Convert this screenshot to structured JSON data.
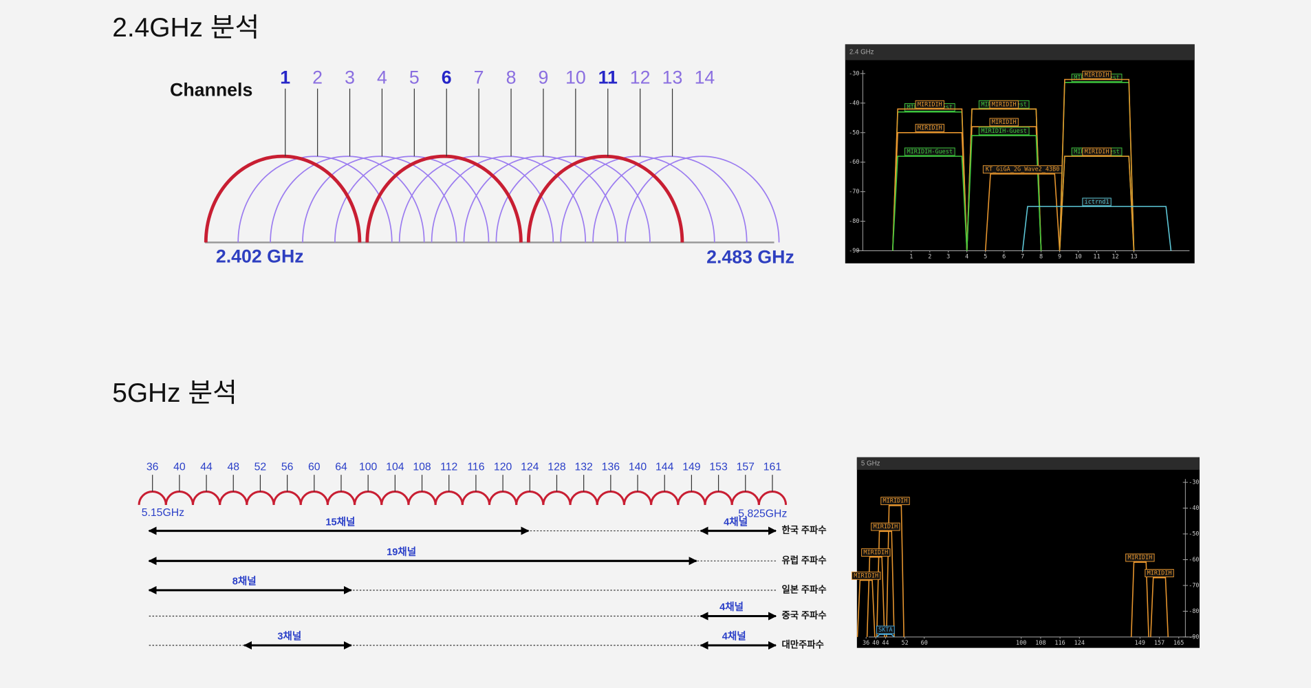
{
  "sections": [
    {
      "title": "2.4GHz 분석",
      "diagram": {
        "axis_label": "Channels",
        "channels": [
          "1",
          "2",
          "3",
          "4",
          "5",
          "6",
          "7",
          "8",
          "9",
          "10",
          "11",
          "12",
          "13",
          "14"
        ],
        "freq_start": "2.402 GHz",
        "freq_end": "2.483 GHz"
      },
      "analyzer": {
        "header": "2.4 GHz",
        "yticks": [
          -30,
          -40,
          -50,
          -60,
          -70,
          -80,
          -90
        ],
        "xticks": [
          1,
          2,
          3,
          4,
          5,
          6,
          7,
          8,
          9,
          10,
          11,
          12,
          13
        ],
        "networks": [
          {
            "ssid": "MIRIDIH-Guest",
            "channel": 2,
            "width": 20,
            "level": -43,
            "color": "#3ec83e"
          },
          {
            "ssid": "MIRIDIH",
            "channel": 2,
            "width": 20,
            "level": -42,
            "color": "#e8962e"
          },
          {
            "ssid": "MIRIDIH",
            "channel": 2,
            "width": 20,
            "level": -50,
            "color": "#e8962e"
          },
          {
            "ssid": "MIRIDIH-Guest",
            "channel": 2,
            "width": 20,
            "level": -58,
            "color": "#3ec83e"
          },
          {
            "ssid": "MIRIDIH-Guest",
            "channel": 6,
            "width": 20,
            "level": -42,
            "color": "#3ec83e"
          },
          {
            "ssid": "MIRIDIH",
            "channel": 6,
            "width": 20,
            "level": -42,
            "color": "#e8962e"
          },
          {
            "ssid": "MIRIDIH",
            "channel": 6,
            "width": 20,
            "level": -48,
            "color": "#e8962e"
          },
          {
            "ssid": "MIRIDIH-Guest",
            "channel": 6,
            "width": 20,
            "level": -51,
            "color": "#3ec83e"
          },
          {
            "ssid": "KT_GiGA_2G_Wave2_43B0",
            "channel": 7,
            "width": 20,
            "level": -64,
            "color": "#e8962e"
          },
          {
            "ssid": "MIRIDIH-Guest",
            "channel": 11,
            "width": 20,
            "level": -33,
            "color": "#3ec83e"
          },
          {
            "ssid": "MIRIDIH",
            "channel": 11,
            "width": 20,
            "level": -32,
            "color": "#e8962e"
          },
          {
            "ssid": "MIRIDIH-Guest",
            "channel": 11,
            "width": 20,
            "level": -58,
            "color": "#3ec83e"
          },
          {
            "ssid": "MIRIDIH",
            "channel": 11,
            "width": 20,
            "level": -58,
            "color": "#e8962e"
          },
          {
            "ssid": "ictrnd1",
            "channel": 11,
            "width": 40,
            "level": -75,
            "color": "#5ec8d8"
          }
        ]
      }
    },
    {
      "title": "5GHz 분석",
      "diagram": {
        "channels": [
          "36",
          "40",
          "44",
          "48",
          "52",
          "56",
          "60",
          "64",
          "100",
          "104",
          "108",
          "112",
          "116",
          "120",
          "124",
          "128",
          "132",
          "136",
          "140",
          "144",
          "149",
          "153",
          "157",
          "161"
        ],
        "freq_start": "5.15GHz",
        "freq_end": "5.825GHz",
        "regions": [
          {
            "name": "한국 주파수",
            "spans": [
              "15채널",
              "4채널"
            ]
          },
          {
            "name": "유럽 주파수",
            "spans": [
              "19채널"
            ]
          },
          {
            "name": "일본 주파수",
            "spans": [
              "8채널"
            ]
          },
          {
            "name": "중국 주파수",
            "spans": [
              "4채널"
            ]
          },
          {
            "name": "대만주파수",
            "spans": [
              "3채널",
              "4채널"
            ]
          }
        ]
      },
      "analyzer": {
        "header": "5 GHz",
        "yticks": [
          -30,
          -40,
          -50,
          -60,
          -70,
          -80,
          -90
        ],
        "xticks": [
          36,
          40,
          44,
          52,
          60,
          100,
          108,
          116,
          124,
          149,
          157,
          165
        ],
        "networks": [
          {
            "ssid": "MIRIDIH",
            "channel": 48,
            "width": 20,
            "level": -39,
            "color": "#e8962e"
          },
          {
            "ssid": "MIRIDIH",
            "channel": 44,
            "width": 20,
            "level": -49,
            "color": "#e8962e"
          },
          {
            "ssid": "MIRIDIH",
            "channel": 40,
            "width": 20,
            "level": -59,
            "color": "#e8962e"
          },
          {
            "ssid": "MIRIDIH",
            "channel": 36,
            "width": 20,
            "level": -68,
            "color": "#e8962e"
          },
          {
            "ssid": "SKTA",
            "channel": 44,
            "width": 20,
            "level": -89,
            "color": "#4aa8d8"
          },
          {
            "ssid": "MIRIDIH",
            "channel": 149,
            "width": 20,
            "level": -61,
            "color": "#e8962e"
          },
          {
            "ssid": "MIRIDIH",
            "channel": 157,
            "width": 20,
            "level": -67,
            "color": "#e8962e"
          }
        ]
      }
    }
  ]
}
